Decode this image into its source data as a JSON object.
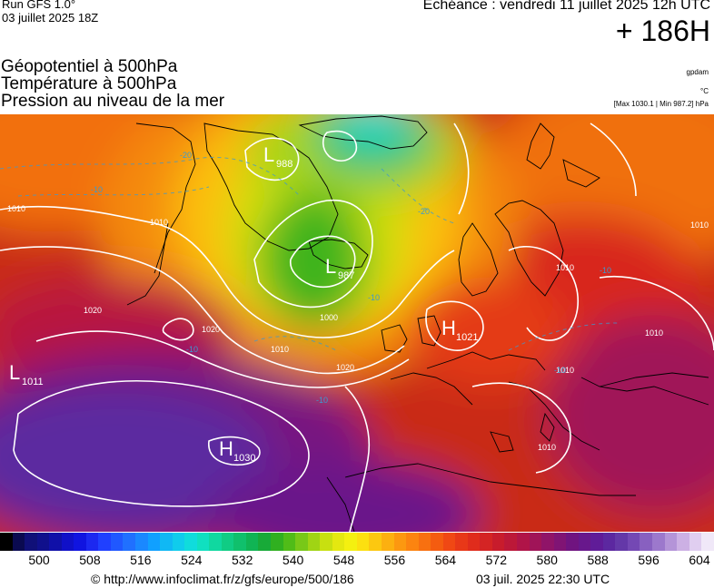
{
  "header": {
    "run_model": "Run GFS 1.0°",
    "run_date": "03 juillet 2025 18Z",
    "valid_time": "Echéance : vendredi 11 juillet 2025 12h UTC",
    "lead_time": "+ 186H"
  },
  "titles": {
    "line1": "Géopotentiel à 500hPa",
    "line2": "Température à 500hPa",
    "line3": "Pression au niveau de la mer"
  },
  "units": {
    "variable_code": "gpdam",
    "temperature": "°C",
    "pressure_range": "[Max 1030.1 | Min 987.2] hPa"
  },
  "map": {
    "region": "Europe / North Atlantic",
    "highs": [
      {
        "label": "H",
        "value": "1021"
      },
      {
        "label": "H",
        "value": "1030"
      }
    ],
    "lows": [
      {
        "label": "L",
        "value": "988"
      },
      {
        "label": "L",
        "value": "987"
      },
      {
        "label": "L",
        "value": "1011"
      }
    ],
    "isobar_labels": [
      "1010",
      "1010",
      "1020",
      "1020",
      "1010",
      "1000",
      "1020",
      "1010",
      "1010",
      "1010",
      "1010",
      "1010"
    ],
    "isotherm_labels": [
      "-20",
      "-10",
      "-20",
      "-10",
      "-10",
      "-10",
      "-10",
      "-10"
    ]
  },
  "colorbar": {
    "colors": [
      "#000000",
      "#0a0a50",
      "#101078",
      "#10108c",
      "#1010a8",
      "#1010c8",
      "#1014e0",
      "#1c28f0",
      "#2040ff",
      "#2058ff",
      "#2070ff",
      "#1a88ff",
      "#10a0ff",
      "#10b8f4",
      "#10ccec",
      "#10dcdc",
      "#10e0c0",
      "#10d8a0",
      "#10cc84",
      "#10c06c",
      "#10b454",
      "#18aa38",
      "#30b020",
      "#50bc18",
      "#78c818",
      "#a0d414",
      "#c8e010",
      "#e4e810",
      "#f4f010",
      "#fce010",
      "#fcc810",
      "#fcb010",
      "#fc9810",
      "#fc8410",
      "#f87010",
      "#f45c10",
      "#f04814",
      "#e83818",
      "#e02c1c",
      "#d42424",
      "#c81c2c",
      "#bc1838",
      "#b01448",
      "#a01458",
      "#901468",
      "#801474",
      "#701480",
      "#68188c",
      "#601c98",
      "#5c28a0",
      "#6438a8",
      "#7448b4",
      "#8860c0",
      "#9c78cc",
      "#b494d8",
      "#ccb0e4",
      "#e0cef0",
      "#f0e8f8"
    ],
    "tick_labels": [
      "500",
      "508",
      "516",
      "524",
      "532",
      "540",
      "548",
      "556",
      "564",
      "572",
      "580",
      "588",
      "596",
      "604"
    ]
  },
  "footer": {
    "copyright": "© http://www.infoclimat.fr/z/gfs/europe/500/186",
    "issued": "03 juil. 2025 22:30 UTC"
  }
}
